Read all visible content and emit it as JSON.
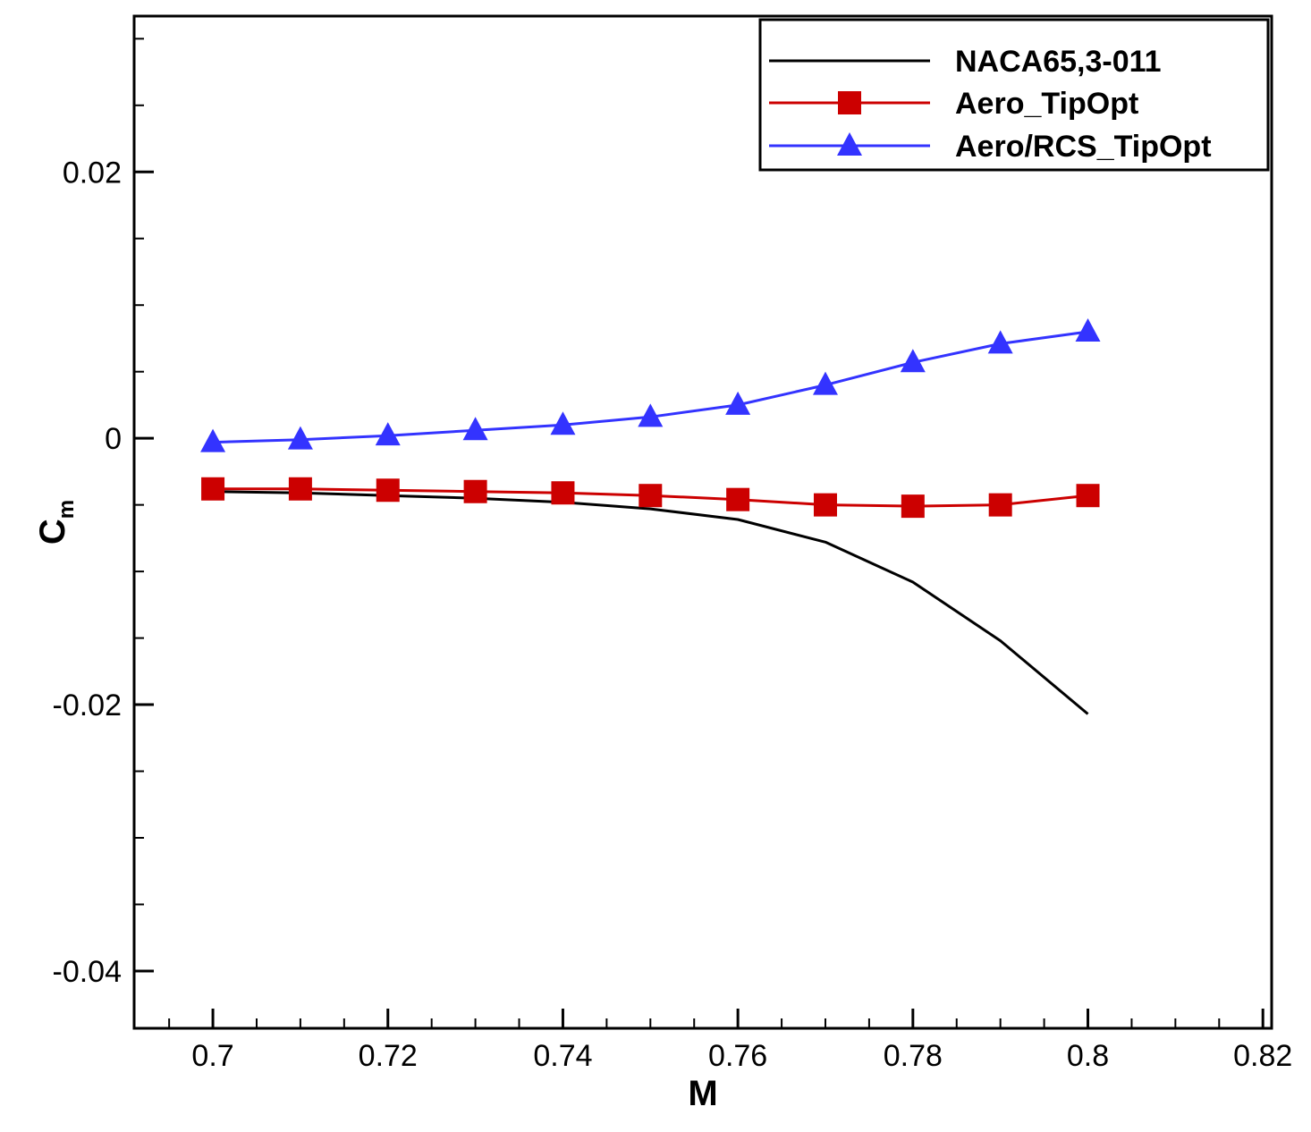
{
  "chart_data": {
    "type": "line",
    "title": "",
    "xlabel": "M",
    "ylabel": "C",
    "ylabel_subscript": "m",
    "xlim": [
      0.691,
      0.821
    ],
    "ylim": [
      -0.0443,
      0.0317
    ],
    "x_ticks": [
      0.7,
      0.72,
      0.74,
      0.76,
      0.78,
      0.8,
      0.82
    ],
    "x_tick_labels": [
      "0.7",
      "0.72",
      "0.74",
      "0.76",
      "0.78",
      "0.8",
      "0.82"
    ],
    "y_ticks": [
      0.02,
      0,
      -0.02,
      -0.04
    ],
    "y_tick_labels": [
      "0.02",
      "0",
      "-0.02",
      "-0.04"
    ],
    "grid": false,
    "legend_position": "top-right",
    "series": [
      {
        "name": "NACA65,3-011",
        "color": "#000000",
        "marker": "none",
        "x": [
          0.7,
          0.71,
          0.72,
          0.73,
          0.74,
          0.75,
          0.76,
          0.77,
          0.78,
          0.79,
          0.8
        ],
        "values": [
          -0.004,
          -0.0041,
          -0.0043,
          -0.0045,
          -0.0048,
          -0.0053,
          -0.0061,
          -0.0078,
          -0.0108,
          -0.0152,
          -0.0207
        ]
      },
      {
        "name": "Aero_TipOpt",
        "color": "#cc0000",
        "marker": "square",
        "x": [
          0.7,
          0.71,
          0.72,
          0.73,
          0.74,
          0.75,
          0.76,
          0.77,
          0.78,
          0.79,
          0.8
        ],
        "values": [
          -0.0038,
          -0.0038,
          -0.0039,
          -0.004,
          -0.0041,
          -0.0043,
          -0.0046,
          -0.005,
          -0.0051,
          -0.005,
          -0.0043
        ]
      },
      {
        "name": "Aero/RCS_TipOpt",
        "color": "#3333ff",
        "marker": "triangle",
        "x": [
          0.7,
          0.71,
          0.72,
          0.73,
          0.74,
          0.75,
          0.76,
          0.77,
          0.78,
          0.79,
          0.8
        ],
        "values": [
          -0.0003,
          -0.0001,
          0.0002,
          0.0006,
          0.001,
          0.0016,
          0.0025,
          0.004,
          0.0057,
          0.0071,
          0.008
        ]
      }
    ]
  }
}
